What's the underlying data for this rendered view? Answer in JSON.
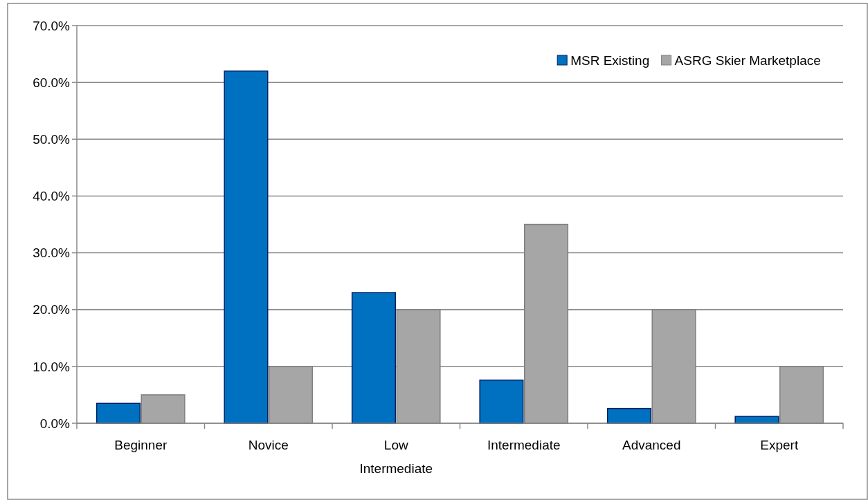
{
  "chart_data": {
    "type": "bar",
    "categories": [
      "Beginner",
      "Novice",
      "Low Intermediate",
      "Intermediate",
      "Advanced",
      "Expert"
    ],
    "series": [
      {
        "name": "MSR Existing",
        "color": "#0070c0",
        "values": [
          3.5,
          62,
          23,
          7.6,
          2.6,
          1.2
        ]
      },
      {
        "name": "ASRG Skier Marketplace",
        "color": "#a6a6a6",
        "values": [
          5,
          10,
          20,
          35,
          20,
          10
        ]
      }
    ],
    "ylim": [
      0,
      70
    ],
    "yticks": [
      {
        "value": 0,
        "label": "0.0%"
      },
      {
        "value": 10,
        "label": "10.0%"
      },
      {
        "value": 20,
        "label": "20.0%"
      },
      {
        "value": 30,
        "label": "30.0%"
      },
      {
        "value": 40,
        "label": "40.0%"
      },
      {
        "value": 50,
        "label": "50.0%"
      },
      {
        "value": 60,
        "label": "60.0%"
      },
      {
        "value": 70,
        "label": "70.0%"
      }
    ],
    "grid": "y",
    "legend": "top right"
  }
}
